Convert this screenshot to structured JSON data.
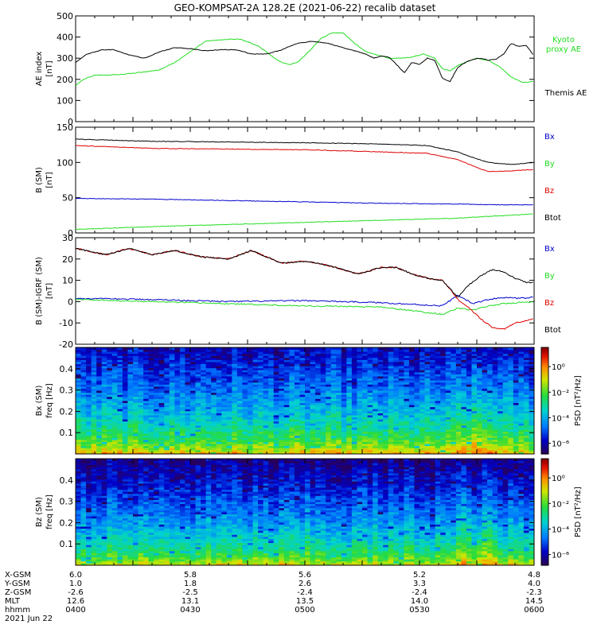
{
  "title": "GEO-KOMPSAT-2A 128.2E (2021-06-22) recalib dataset",
  "chart_data": [
    {
      "type": "line",
      "panel": "ae",
      "ylabel_lines": [
        "AE index",
        "[nT]"
      ],
      "ylim": [
        0,
        500
      ],
      "yticks": [
        "0",
        "100",
        "200",
        "300",
        "400",
        "500"
      ],
      "x_hhmm_range": [
        "0400",
        "0600"
      ],
      "series": [
        {
          "name": "Kyoto",
          "name2": "proxy AE",
          "color": "#22dd22",
          "x": [
            0,
            2,
            5,
            9,
            13,
            18,
            22,
            26,
            30,
            34,
            37,
            40,
            43,
            46,
            48,
            50,
            52,
            54,
            56,
            58,
            61,
            64,
            67,
            70,
            73,
            76,
            78,
            80,
            82,
            85,
            88,
            91,
            94,
            96,
            98,
            100,
            102,
            105,
            108,
            111,
            114,
            117,
            120
          ],
          "values": [
            170,
            200,
            220,
            220,
            225,
            235,
            245,
            280,
            330,
            380,
            385,
            390,
            390,
            370,
            355,
            330,
            300,
            280,
            270,
            280,
            330,
            390,
            420,
            420,
            370,
            330,
            320,
            310,
            300,
            300,
            305,
            320,
            300,
            250,
            240,
            265,
            280,
            300,
            290,
            260,
            210,
            185,
            190
          ]
        },
        {
          "name": "Themis AE",
          "color": "#000000",
          "x": [
            0,
            3,
            7,
            10,
            14,
            18,
            22,
            26,
            30,
            34,
            38,
            42,
            46,
            50,
            54,
            58,
            60,
            62,
            64,
            66,
            68,
            70,
            72,
            74,
            76,
            78,
            80,
            82,
            84,
            86,
            88,
            90,
            92,
            94,
            96,
            98,
            100,
            102,
            104,
            106,
            108,
            110,
            112,
            114,
            116,
            118,
            120
          ],
          "values": [
            280,
            320,
            340,
            340,
            315,
            300,
            330,
            350,
            345,
            335,
            340,
            340,
            320,
            320,
            340,
            370,
            375,
            380,
            375,
            370,
            360,
            350,
            340,
            330,
            320,
            300,
            310,
            305,
            270,
            230,
            280,
            270,
            300,
            290,
            205,
            190,
            255,
            280,
            295,
            300,
            290,
            295,
            320,
            370,
            355,
            360,
            310
          ]
        }
      ]
    },
    {
      "type": "line",
      "panel": "b",
      "ylabel_lines": [
        "B (SM)",
        "[nT]"
      ],
      "ylim": [
        0,
        150
      ],
      "yticks": [
        "0",
        "50",
        "100",
        "150"
      ],
      "series": [
        {
          "name": "Bx",
          "color": "#0000cc",
          "x": [
            0,
            20,
            40,
            60,
            80,
            100,
            110,
            120
          ],
          "values": [
            49,
            48,
            46,
            44,
            42,
            41,
            40,
            40
          ]
        },
        {
          "name": "By",
          "color": "#22dd22",
          "x": [
            0,
            20,
            40,
            60,
            80,
            100,
            110,
            120
          ],
          "values": [
            5,
            9,
            12,
            15,
            18,
            21,
            24,
            27
          ]
        },
        {
          "name": "Bz",
          "color": "#dd0000",
          "x": [
            0,
            20,
            40,
            60,
            80,
            92,
            100,
            104,
            108,
            114,
            120
          ],
          "values": [
            124,
            120,
            119,
            118,
            115,
            113,
            104,
            95,
            87,
            88,
            90
          ]
        },
        {
          "name": "Btot",
          "color": "#000000",
          "x": [
            0,
            20,
            40,
            60,
            80,
            92,
            100,
            104,
            108,
            114,
            120
          ],
          "values": [
            133,
            130,
            129,
            128,
            126,
            124,
            115,
            107,
            100,
            97,
            100
          ]
        }
      ]
    },
    {
      "type": "line",
      "panel": "db",
      "ylabel_lines": [
        "B (SM)-IGRF (SM)",
        "[nT]"
      ],
      "ylim": [
        -20,
        30
      ],
      "yticks": [
        "-20",
        "-10",
        "0",
        "10",
        "20",
        "30"
      ],
      "series": [
        {
          "name": "Bx",
          "color": "#0000cc",
          "x": [
            0,
            20,
            40,
            60,
            80,
            96,
            100,
            104,
            108,
            112,
            116,
            120
          ],
          "values": [
            1.5,
            1,
            0,
            0.5,
            -0.5,
            -2,
            3,
            -1,
            1,
            2,
            1.5,
            2
          ]
        },
        {
          "name": "By",
          "color": "#22dd22",
          "x": [
            0,
            20,
            40,
            60,
            80,
            96,
            100,
            104,
            108,
            112,
            116,
            120
          ],
          "values": [
            1,
            0,
            -1,
            -2,
            -2.5,
            -6,
            -3,
            -4,
            -2,
            -1,
            -0.5,
            0
          ]
        },
        {
          "name": "Bz",
          "color": "#dd0000",
          "x": [
            0,
            8,
            14,
            20,
            26,
            33,
            40,
            46,
            54,
            60,
            66,
            74,
            80,
            84,
            88,
            92,
            96,
            98,
            100,
            103,
            106,
            109,
            112,
            115,
            118,
            120
          ],
          "values": [
            25,
            22,
            25,
            22,
            24,
            21,
            20,
            24,
            18,
            19,
            17,
            13,
            16,
            16,
            13,
            11,
            10,
            6,
            1,
            -3,
            -8,
            -12,
            -13,
            -10,
            -9,
            -8
          ]
        },
        {
          "name": "Btot",
          "color": "#000000",
          "x": [
            0,
            8,
            14,
            20,
            26,
            33,
            40,
            46,
            54,
            60,
            66,
            74,
            80,
            84,
            88,
            92,
            96,
            98,
            100,
            103,
            106,
            109,
            112,
            115,
            118,
            120
          ],
          "values": [
            25,
            22,
            25,
            22,
            24,
            21,
            20,
            24,
            18,
            19,
            17,
            13,
            16,
            16,
            13,
            11,
            10,
            6,
            2,
            8,
            12,
            15,
            14,
            11,
            9,
            9
          ]
        }
      ]
    },
    {
      "type": "heatmap",
      "panel": "bx_psd",
      "ylabel_lines": [
        "Bx (SM)",
        "freq [Hz]"
      ],
      "ylim": [
        0,
        0.5
      ],
      "yticks": [
        "0.1",
        "0.2",
        "0.3",
        "0.4"
      ],
      "colorbar_label": "PSD [nT²/Hz]",
      "colorbar_ticks": [
        "10⁰",
        "10⁻²",
        "10⁻⁴",
        "10⁻⁶"
      ]
    },
    {
      "type": "heatmap",
      "panel": "bz_psd",
      "ylabel_lines": [
        "Bz (SM)",
        "freq [Hz]"
      ],
      "ylim": [
        0,
        0.5
      ],
      "yticks": [
        "0.1",
        "0.2",
        "0.3",
        "0.4"
      ],
      "colorbar_label": "PSD [nT²/Hz]",
      "colorbar_ticks": [
        "10⁰",
        "10⁻²",
        "10⁻⁴",
        "10⁻⁶"
      ]
    }
  ],
  "ephemeris": {
    "row_labels": [
      "X-GSM",
      "Y-GSM",
      "Z-GSM",
      "MLT",
      "hhmm"
    ],
    "columns": [
      [
        "6.0",
        "1.0",
        "-2.6",
        "12.6",
        "0400"
      ],
      [
        "5.8",
        "1.8",
        "-2.5",
        "13.1",
        "0430"
      ],
      [
        "5.6",
        "2.6",
        "-2.4",
        "13.5",
        "0500"
      ],
      [
        "5.2",
        "3.3",
        "-2.4",
        "14.0",
        "0530"
      ],
      [
        "4.8",
        "4.0",
        "-2.3",
        "14.5",
        "0600"
      ]
    ],
    "date": "2021 Jun 22"
  }
}
